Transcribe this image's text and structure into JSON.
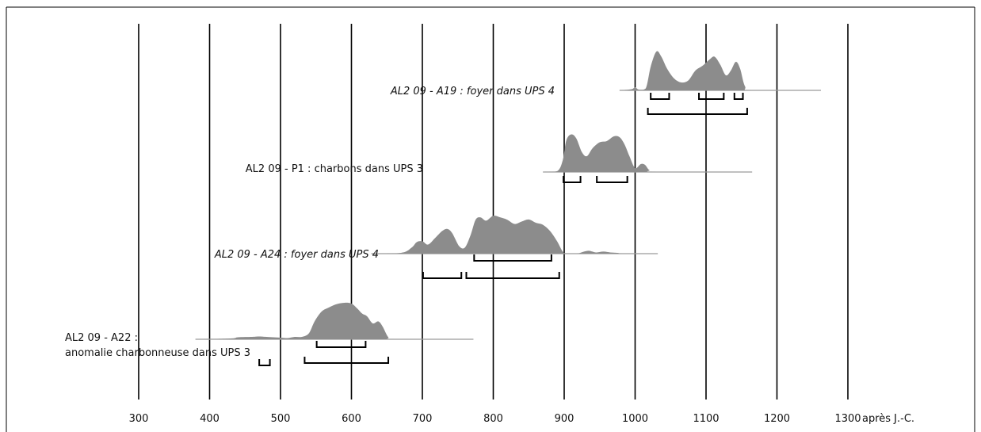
{
  "chart_data": {
    "type": "area",
    "xlim": [
      300,
      1300
    ],
    "x_tick_values": [
      300,
      400,
      500,
      600,
      700,
      800,
      900,
      1000,
      1100,
      1200,
      1300
    ],
    "x_tick_labels": [
      "300",
      "400",
      "500",
      "600",
      "700",
      "800",
      "900",
      "1000",
      "1100",
      "1200",
      "1300"
    ],
    "x_unit_label": "après J.-C.",
    "grid": "vertical lines at each tick",
    "colors": {
      "distribution": "#8c8c8c",
      "baseline": "#9a9a9a",
      "grid": "#000000",
      "brackets": "#000000"
    },
    "samples": [
      {
        "label": "AL2 09 - A19 : foyer dans UPS 4",
        "italic": true,
        "baseline_range": [
          978,
          1262
        ],
        "distribution": [
          [
            978,
            0
          ],
          [
            995,
            0.03
          ],
          [
            1000,
            0.08
          ],
          [
            1005,
            0.02
          ],
          [
            1015,
            0.05
          ],
          [
            1022,
            0.6
          ],
          [
            1030,
            0.98
          ],
          [
            1037,
            0.85
          ],
          [
            1045,
            0.55
          ],
          [
            1055,
            0.3
          ],
          [
            1065,
            0.2
          ],
          [
            1075,
            0.25
          ],
          [
            1085,
            0.5
          ],
          [
            1095,
            0.62
          ],
          [
            1105,
            0.78
          ],
          [
            1112,
            0.85
          ],
          [
            1120,
            0.65
          ],
          [
            1128,
            0.38
          ],
          [
            1135,
            0.5
          ],
          [
            1142,
            0.72
          ],
          [
            1148,
            0.55
          ],
          [
            1155,
            0.1
          ],
          [
            1165,
            0
          ],
          [
            1262,
            0
          ]
        ],
        "ranges_1sigma": [
          [
            1022,
            1048
          ],
          [
            1090,
            1125
          ],
          [
            1140,
            1152
          ]
        ],
        "ranges_2sigma": [
          [
            1018,
            1158
          ]
        ]
      },
      {
        "label": "AL2 09 - P1 : charbons dans UPS 3",
        "italic": false,
        "baseline_range": [
          870,
          1165
        ],
        "distribution": [
          [
            870,
            0
          ],
          [
            890,
            0.02
          ],
          [
            898,
            0.3
          ],
          [
            903,
            0.8
          ],
          [
            910,
            0.95
          ],
          [
            917,
            0.85
          ],
          [
            925,
            0.5
          ],
          [
            932,
            0.4
          ],
          [
            940,
            0.6
          ],
          [
            950,
            0.75
          ],
          [
            960,
            0.78
          ],
          [
            970,
            0.9
          ],
          [
            978,
            0.88
          ],
          [
            985,
            0.7
          ],
          [
            992,
            0.4
          ],
          [
            1000,
            0.1
          ],
          [
            1008,
            0.2
          ],
          [
            1014,
            0.18
          ],
          [
            1020,
            0.05
          ],
          [
            1030,
            0
          ],
          [
            1165,
            0
          ]
        ],
        "ranges_1sigma": [
          [
            899,
            923
          ],
          [
            946,
            989
          ]
        ],
        "ranges_2sigma": []
      },
      {
        "label": "AL2 09 - A24 : foyer dans UPS 4",
        "italic": true,
        "baseline_range": [
          628,
          1032
        ],
        "distribution": [
          [
            628,
            0
          ],
          [
            670,
            0.02
          ],
          [
            685,
            0.15
          ],
          [
            692,
            0.28
          ],
          [
            700,
            0.3
          ],
          [
            708,
            0.22
          ],
          [
            718,
            0.38
          ],
          [
            728,
            0.55
          ],
          [
            735,
            0.6
          ],
          [
            742,
            0.5
          ],
          [
            752,
            0.18
          ],
          [
            760,
            0.15
          ],
          [
            768,
            0.45
          ],
          [
            775,
            0.82
          ],
          [
            782,
            0.88
          ],
          [
            790,
            0.8
          ],
          [
            800,
            0.92
          ],
          [
            810,
            0.88
          ],
          [
            820,
            0.82
          ],
          [
            830,
            0.72
          ],
          [
            840,
            0.78
          ],
          [
            850,
            0.83
          ],
          [
            860,
            0.75
          ],
          [
            870,
            0.7
          ],
          [
            880,
            0.55
          ],
          [
            890,
            0.3
          ],
          [
            898,
            0.05
          ],
          [
            905,
            0
          ],
          [
            918,
            0
          ],
          [
            928,
            0.05
          ],
          [
            935,
            0.07
          ],
          [
            945,
            0.03
          ],
          [
            955,
            0.05
          ],
          [
            965,
            0.03
          ],
          [
            975,
            0.02
          ],
          [
            985,
            0
          ],
          [
            1032,
            0
          ]
        ],
        "ranges_1sigma": [
          [
            773,
            882
          ]
        ],
        "ranges_2sigma": [
          [
            701,
            755
          ],
          [
            762,
            893
          ]
        ]
      },
      {
        "label": "AL2 09 - A22 :\nanomalie charbonneuse dans UPS 3",
        "italic": false,
        "baseline_range": [
          380,
          772
        ],
        "distribution": [
          [
            380,
            0
          ],
          [
            430,
            0.02
          ],
          [
            440,
            0.05
          ],
          [
            460,
            0.06
          ],
          [
            470,
            0.07
          ],
          [
            480,
            0.06
          ],
          [
            500,
            0.04
          ],
          [
            510,
            0.03
          ],
          [
            520,
            0.06
          ],
          [
            530,
            0.06
          ],
          [
            540,
            0.15
          ],
          [
            548,
            0.45
          ],
          [
            558,
            0.7
          ],
          [
            568,
            0.8
          ],
          [
            578,
            0.88
          ],
          [
            590,
            0.92
          ],
          [
            600,
            0.9
          ],
          [
            608,
            0.78
          ],
          [
            615,
            0.65
          ],
          [
            622,
            0.58
          ],
          [
            630,
            0.4
          ],
          [
            638,
            0.45
          ],
          [
            644,
            0.32
          ],
          [
            652,
            0.05
          ],
          [
            660,
            0
          ],
          [
            772,
            0
          ]
        ],
        "ranges_1sigma": [
          [
            551,
            620
          ]
        ],
        "ranges_2sigma": [
          [
            534,
            652
          ],
          [
            470,
            485
          ]
        ]
      }
    ]
  }
}
